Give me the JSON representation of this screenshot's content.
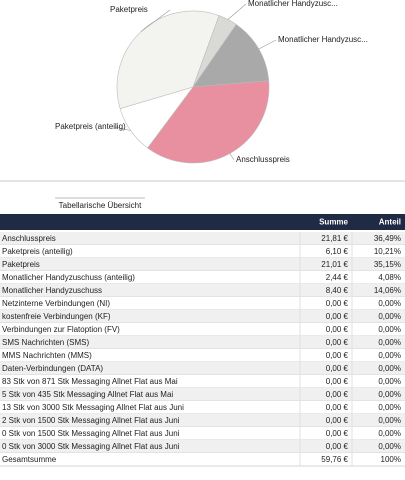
{
  "chart_data": {
    "type": "pie",
    "categories": [
      "Monatlicher Handyzusc...",
      "Monatlicher Handyzusc...",
      "Anschlusspreis",
      "Paketpreis (anteilig)",
      "Paketpreis"
    ],
    "values": [
      4.08,
      14.06,
      36.49,
      10.21,
      35.15
    ],
    "colors": [
      "#d9d9d6",
      "#a9a9a9",
      "#e8909f",
      "#ffffff",
      "#f3f3f0"
    ]
  },
  "table": {
    "title": "Tabellarische Übersicht",
    "columns": [
      "Summe",
      "Anteil"
    ],
    "rows": [
      [
        "Anschlusspreis",
        "21,81 €",
        "36,49%"
      ],
      [
        "Paketpreis (anteilig)",
        "6,10 €",
        "10,21%"
      ],
      [
        "Paketpreis",
        "21,01 €",
        "35,15%"
      ],
      [
        "Monatlicher Handyzuschuss (anteilig)",
        "2,44 €",
        "4,08%"
      ],
      [
        "Monatlicher Handyzuschuss",
        "8,40 €",
        "14,06%"
      ],
      [
        "Netzinterne Verbindungen (NI)",
        "0,00 €",
        "0,00%"
      ],
      [
        "kostenfreie Verbindungen (KF)",
        "0,00 €",
        "0,00%"
      ],
      [
        "Verbindungen zur Flatoption (FV)",
        "0,00 €",
        "0,00%"
      ],
      [
        "SMS Nachrichten (SMS)",
        "0,00 €",
        "0,00%"
      ],
      [
        "MMS Nachrichten (MMS)",
        "0,00 €",
        "0,00%"
      ],
      [
        "Daten-Verbindungen (DATA)",
        "0,00 €",
        "0,00%"
      ],
      [
        "83 Stk von 871 Stk Messaging Allnet Flat aus Mai",
        "0,00 €",
        "0,00%"
      ],
      [
        "5 Stk von 435 Stk Messaging Allnet Flat aus Mai",
        "0,00 €",
        "0,00%"
      ],
      [
        "13 Stk von 3000 Stk Messaging Allnet Flat aus Juni",
        "0,00 €",
        "0,00%"
      ],
      [
        "2 Stk von 1500 Stk Messaging Allnet Flat aus Juni",
        "0,00 €",
        "0,00%"
      ],
      [
        "0 Stk von 1500 Stk Messaging Allnet Flat aus Juni",
        "0,00 €",
        "0,00%"
      ],
      [
        "0 Stk von 3000 Stk Messaging Allnet Flat aus Juni",
        "0,00 €",
        "0,00%"
      ],
      [
        "Gesamtsumme",
        "59,76 €",
        "100%"
      ]
    ]
  }
}
